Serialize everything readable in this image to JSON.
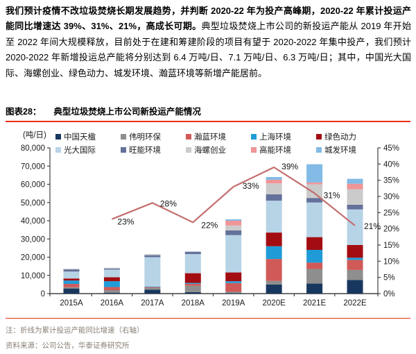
{
  "intro": {
    "bold_text": "我们预计疫情不改垃圾焚烧长期发展趋势，并判断 2020-22 年为投产高峰期，2020-22 年累计投运产能同比增速达 39%、31%、21%，高成长可期。",
    "normal_text": "典型垃圾焚烧上市公司的新投运产能从 2019 年开始至 2022 年间大规模释放，目前处于在建和筹建阶段的项目有望于 2020-2022 年集中投产，我们预计 2020-2022 年新增投运总产能将分别达到 6.4 万吨/日、7.1 万吨/日、6.3 万吨/日；其中，中国光大国际、海螺创业、绿色动力、城发环境、瀚蓝环境等新增产能居前。"
  },
  "figure": {
    "label": "图表28：",
    "title": "典型垃圾焚烧上市公司新投运产能情况"
  },
  "chart_data": {
    "type": "stacked-bar + line",
    "unit_label": "(吨/日)",
    "categories": [
      "2015A",
      "2016A",
      "2017A",
      "2018A",
      "2019A",
      "2020E",
      "2021E",
      "2022E"
    ],
    "series": [
      {
        "name": "中国天楹",
        "color": "#17375E",
        "values": [
          2800,
          500,
          2100,
          800,
          300,
          5000,
          5500,
          7500
        ]
      },
      {
        "name": "伟明环保",
        "color": "#8E8E8E",
        "values": [
          700,
          1400,
          1100,
          3500,
          700,
          2000,
          8000,
          5500
        ]
      },
      {
        "name": "瀚蓝环境",
        "color": "#D05A58",
        "values": [
          1800,
          1700,
          400,
          1100,
          4800,
          12000,
          3500,
          5500
        ]
      },
      {
        "name": "上海环境",
        "color": "#1F9CD8",
        "values": [
          1900,
          3200,
          300,
          500,
          1000,
          7000,
          7000,
          1200
        ]
      },
      {
        "name": "绿色动力",
        "color": "#A30D12",
        "values": [
          1100,
          2200,
          0,
          5300,
          4800,
          7500,
          7000,
          7000
        ]
      },
      {
        "name": "光大国际",
        "color": "#B7D3E6",
        "values": [
          3800,
          4200,
          16100,
          10500,
          20500,
          17500,
          19000,
          19500
        ]
      },
      {
        "name": "旺能环境",
        "color": "#64719A",
        "values": [
          1200,
          600,
          1100,
          1300,
          2600,
          3500,
          2500,
          2600
        ]
      },
      {
        "name": "海螺创业",
        "color": "#CBCBCB",
        "values": [
          300,
          400,
          600,
          0,
          2700,
          6000,
          7500,
          8500
        ]
      },
      {
        "name": "高能环境",
        "color": "#F09597",
        "values": [
          0,
          0,
          0,
          0,
          2600,
          2000,
          1000,
          3000
        ]
      },
      {
        "name": "城发环境",
        "color": "#82BBE6",
        "values": [
          0,
          0,
          0,
          0,
          800,
          1500,
          10000,
          2700
        ]
      }
    ],
    "line": {
      "name": "累计投运产能同比增速（右轴）",
      "color": "#C56E6E",
      "values": [
        null,
        23,
        28,
        22,
        33,
        39,
        31,
        21
      ],
      "point_labels": [
        "",
        "23%",
        "28%",
        "22%",
        "33%",
        "39%",
        "31%",
        "21%"
      ]
    },
    "left_axis": {
      "min": 0,
      "max": 80000,
      "step": 10000,
      "tick_labels": [
        "0",
        "10,000",
        "20,000",
        "30,000",
        "40,000",
        "50,000",
        "60,000",
        "70,000",
        "80,000"
      ]
    },
    "right_axis": {
      "min": 0,
      "max": 45,
      "step": 5,
      "tick_labels": [
        "0%",
        "5%",
        "10%",
        "15%",
        "20%",
        "25%",
        "30%",
        "35%",
        "40%",
        "45%"
      ]
    },
    "grid": "off",
    "legend_position": "top, two rows"
  },
  "footer": {
    "note": "注：折线为累计投运产能同比增速（右轴）",
    "source": "资料来源：公司公告，华泰证券研究所"
  }
}
